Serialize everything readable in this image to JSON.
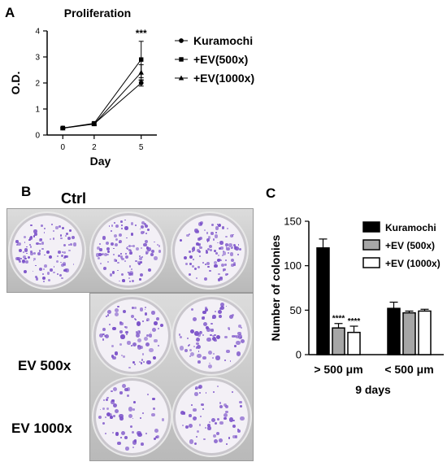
{
  "panels": {
    "a": "A",
    "b": "B",
    "c": "C"
  },
  "colors": {
    "kuramochi_bar": "#000000",
    "ev500_bar": "#a6a6a6",
    "ev1000_bar": "#ffffff",
    "colony": "#7b52c9",
    "well_bg": "#f3f0f6"
  },
  "plate_labels": {
    "ctrl": "Ctrl",
    "ev500": "EV 500x",
    "ev1000": "EV 1000x"
  },
  "chart_data": [
    {
      "type": "line",
      "title": "Proliferation",
      "xlabel": "Day",
      "ylabel": "O.D.",
      "x": [
        0,
        2,
        5
      ],
      "ylim": [
        0,
        4
      ],
      "yticks": [
        0,
        1,
        2,
        3,
        4
      ],
      "annotation": "***",
      "legend_position": "right",
      "series": [
        {
          "name": "Kuramochi",
          "marker": "circle",
          "values": [
            0.27,
            0.43,
            2.0
          ],
          "errors": [
            0.03,
            0.05,
            0.12
          ]
        },
        {
          "name": "+EV(500x)",
          "marker": "square",
          "values": [
            0.27,
            0.45,
            2.9
          ],
          "errors": [
            0.03,
            0.05,
            0.7
          ]
        },
        {
          "name": "+EV(1000x)",
          "marker": "triangle",
          "values": [
            0.26,
            0.42,
            2.4
          ],
          "errors": [
            0.03,
            0.05,
            0.3
          ]
        }
      ]
    },
    {
      "type": "bar",
      "title": "",
      "xlabel": "9 days",
      "ylabel": "Number of colonies",
      "categories": [
        "> 500 μm",
        "< 500 μm"
      ],
      "ylim": [
        0,
        150
      ],
      "yticks": [
        0,
        50,
        100,
        150
      ],
      "legend_position": "top-right",
      "series": [
        {
          "name": "Kuramochi",
          "values": [
            120,
            52
          ],
          "errors": [
            10,
            7
          ],
          "labels": [
            "",
            ""
          ]
        },
        {
          "name": "+EV (500x)",
          "values": [
            30,
            47
          ],
          "errors": [
            5,
            2
          ],
          "labels": [
            "****",
            ""
          ]
        },
        {
          "name": "+EV (1000x)",
          "values": [
            25,
            49
          ],
          "errors": [
            7,
            2
          ],
          "labels": [
            "****",
            ""
          ]
        }
      ]
    }
  ]
}
